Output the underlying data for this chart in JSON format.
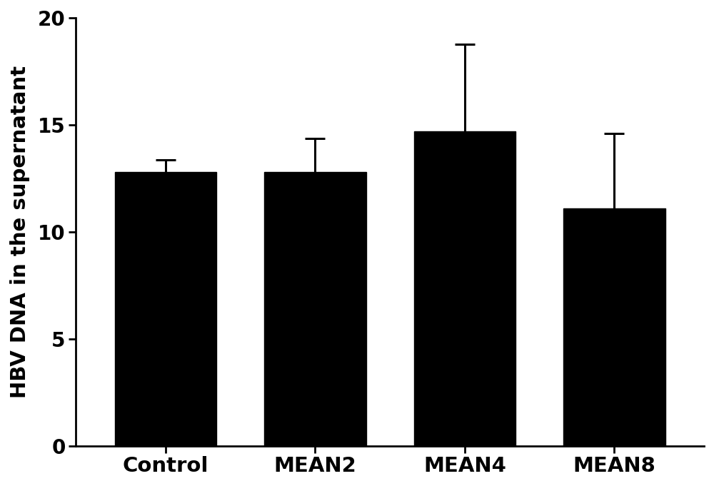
{
  "categories": [
    "Control",
    "MEAN2",
    "MEAN4",
    "MEAN8"
  ],
  "values": [
    12.8,
    12.8,
    14.7,
    11.1
  ],
  "errors": [
    0.55,
    1.55,
    4.05,
    3.5
  ],
  "bar_color": "#000000",
  "bar_width": 0.68,
  "ylabel": "HBV DNA in the supernatant",
  "ylim": [
    0,
    20
  ],
  "yticks": [
    0,
    5,
    10,
    15,
    20
  ],
  "background_color": "#ffffff",
  "figure_facecolor": "#ffffff",
  "ylabel_fontsize": 21,
  "tick_fontsize": 20,
  "xlabel_fontsize": 21,
  "error_capsize": 10,
  "error_linewidth": 2.2,
  "error_color": "#000000",
  "spine_linewidth": 2.0
}
